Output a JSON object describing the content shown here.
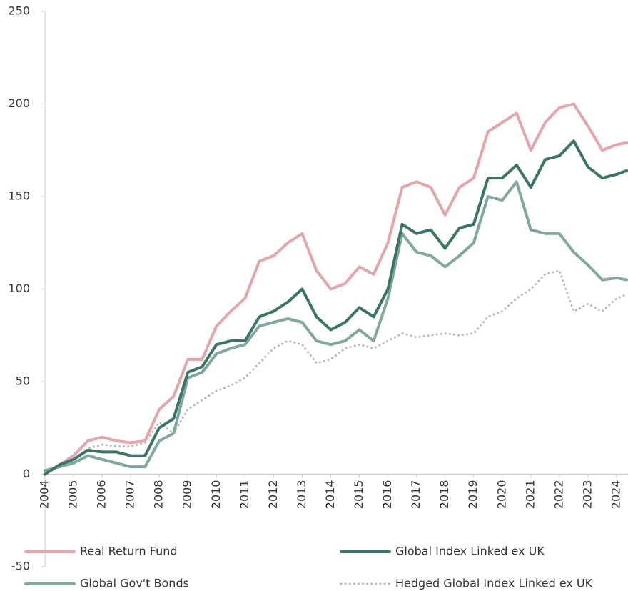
{
  "chart_data": {
    "type": "line",
    "x": [
      2004,
      2004.5,
      2005,
      2005.5,
      2006,
      2006.5,
      2007,
      2007.5,
      2008,
      2008.5,
      2009,
      2009.5,
      2010,
      2010.5,
      2011,
      2011.5,
      2012,
      2012.5,
      2013,
      2013.5,
      2014,
      2014.5,
      2015,
      2015.5,
      2016,
      2016.5,
      2017,
      2017.5,
      2018,
      2018.5,
      2019,
      2019.5,
      2020,
      2020.5,
      2021,
      2021.5,
      2022,
      2022.5,
      2023,
      2023.5,
      2024,
      2024.35
    ],
    "series": [
      {
        "name": "Real Return Fund",
        "color": "#e3a6ad",
        "line_style": "solid",
        "values": [
          0,
          5,
          10,
          18,
          20,
          18,
          17,
          18,
          35,
          42,
          62,
          62,
          80,
          88,
          95,
          115,
          118,
          125,
          130,
          110,
          100,
          103,
          112,
          108,
          125,
          155,
          158,
          155,
          140,
          155,
          160,
          185,
          190,
          195,
          175,
          190,
          198,
          200,
          188,
          175,
          178,
          179
        ]
      },
      {
        "name": "Global Index Linked ex UK",
        "color": "#3d7468",
        "line_style": "solid",
        "values": [
          0,
          5,
          8,
          13,
          12,
          12,
          10,
          10,
          25,
          30,
          55,
          58,
          70,
          72,
          72,
          85,
          88,
          93,
          100,
          85,
          78,
          82,
          90,
          85,
          100,
          135,
          130,
          132,
          122,
          133,
          135,
          160,
          160,
          167,
          155,
          170,
          172,
          180,
          166,
          160,
          162,
          164
        ]
      },
      {
        "name": "Global Gov't Bonds",
        "color": "#80a8a0",
        "line_style": "solid",
        "values": [
          2,
          4,
          6,
          10,
          8,
          6,
          4,
          4,
          18,
          22,
          52,
          55,
          65,
          68,
          70,
          80,
          82,
          84,
          82,
          72,
          70,
          72,
          78,
          72,
          95,
          130,
          120,
          118,
          112,
          118,
          125,
          150,
          148,
          158,
          132,
          130,
          130,
          120,
          113,
          105,
          106,
          105
        ]
      },
      {
        "name": "Hedged Global Index Linked ex UK",
        "color": "#b8b8b8",
        "line_style": "dotted",
        "values": [
          0,
          5,
          8,
          14,
          16,
          15,
          15,
          17,
          28,
          22,
          35,
          40,
          45,
          48,
          52,
          60,
          68,
          72,
          70,
          60,
          62,
          68,
          70,
          68,
          72,
          76,
          74,
          75,
          76,
          75,
          76,
          85,
          88,
          95,
          100,
          108,
          110,
          88,
          92,
          88,
          95,
          97
        ]
      }
    ],
    "xlim": [
      2004,
      2024.4
    ],
    "xticks": [
      2004,
      2005,
      2006,
      2007,
      2008,
      2009,
      2010,
      2011,
      2012,
      2013,
      2014,
      2015,
      2016,
      2017,
      2018,
      2019,
      2020,
      2021,
      2022,
      2023,
      2024
    ],
    "ylim": [
      -50,
      250
    ],
    "yticks": [
      -50,
      0,
      50,
      100,
      150,
      200,
      250
    ]
  }
}
